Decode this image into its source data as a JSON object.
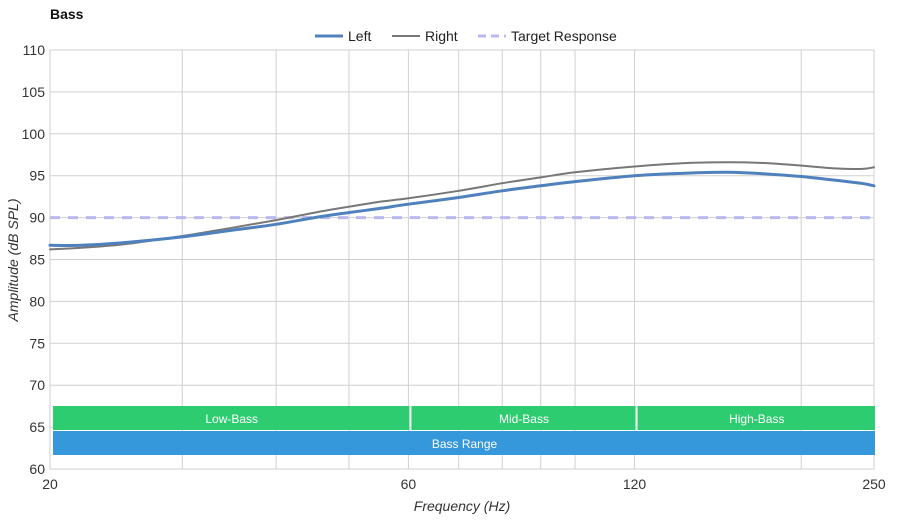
{
  "chart_data": {
    "type": "line",
    "title": "Bass",
    "xlabel": "Frequency (Hz)",
    "ylabel": "Amplitude (dB SPL)",
    "xscale": "log",
    "xlim": [
      20,
      250
    ],
    "ylim": [
      60,
      110
    ],
    "x_ticks": [
      "20",
      "60",
      "120",
      "250"
    ],
    "x_tick_values": [
      20,
      60,
      120,
      250
    ],
    "y_ticks": [
      "110",
      "105",
      "100",
      "95",
      "90",
      "85",
      "80",
      "75",
      "70",
      "65",
      "60"
    ],
    "y_tick_values": [
      110,
      105,
      100,
      95,
      90,
      85,
      80,
      75,
      70,
      65,
      60
    ],
    "x_minor_gridlines": [
      30,
      40,
      50,
      60,
      70,
      80,
      90,
      100,
      120,
      200,
      250
    ],
    "grid": true,
    "legend_position": "top-center",
    "series": [
      {
        "name": "Left",
        "color": "#4f81bd",
        "style": "solid-thick",
        "points": [
          [
            20,
            86.7
          ],
          [
            22,
            86.7
          ],
          [
            25,
            87.0
          ],
          [
            30,
            87.7
          ],
          [
            35,
            88.5
          ],
          [
            40,
            89.2
          ],
          [
            45,
            90.0
          ],
          [
            50,
            90.6
          ],
          [
            55,
            91.1
          ],
          [
            60,
            91.6
          ],
          [
            70,
            92.4
          ],
          [
            80,
            93.2
          ],
          [
            90,
            93.8
          ],
          [
            100,
            94.3
          ],
          [
            120,
            95.0
          ],
          [
            140,
            95.3
          ],
          [
            160,
            95.4
          ],
          [
            180,
            95.2
          ],
          [
            200,
            94.9
          ],
          [
            220,
            94.5
          ],
          [
            240,
            94.1
          ],
          [
            250,
            93.8
          ]
        ]
      },
      {
        "name": "Right",
        "color": "#777777",
        "style": "solid",
        "points": [
          [
            20,
            86.2
          ],
          [
            22,
            86.4
          ],
          [
            25,
            86.8
          ],
          [
            30,
            87.8
          ],
          [
            35,
            88.8
          ],
          [
            40,
            89.7
          ],
          [
            45,
            90.6
          ],
          [
            50,
            91.3
          ],
          [
            55,
            91.9
          ],
          [
            60,
            92.3
          ],
          [
            70,
            93.2
          ],
          [
            80,
            94.1
          ],
          [
            90,
            94.8
          ],
          [
            100,
            95.4
          ],
          [
            120,
            96.1
          ],
          [
            140,
            96.5
          ],
          [
            160,
            96.6
          ],
          [
            180,
            96.5
          ],
          [
            200,
            96.2
          ],
          [
            220,
            95.9
          ],
          [
            240,
            95.8
          ],
          [
            250,
            96.0
          ]
        ]
      },
      {
        "name": "Target Response",
        "color": "#b9b9f0",
        "style": "dashed",
        "points": [
          [
            20,
            90
          ],
          [
            250,
            90
          ]
        ]
      }
    ],
    "bands": [
      {
        "label": "Low-Bass",
        "x_start": 20,
        "x_end": 60,
        "row": 0,
        "color": "#2ecc71"
      },
      {
        "label": "Mid-Bass",
        "x_start": 60,
        "x_end": 120,
        "row": 0,
        "color": "#2ecc71"
      },
      {
        "label": "High-Bass",
        "x_start": 120,
        "x_end": 250,
        "row": 0,
        "color": "#2ecc71"
      },
      {
        "label": "Bass Range",
        "x_start": 20,
        "x_end": 250,
        "row": 1,
        "color": "#3498db"
      }
    ]
  }
}
